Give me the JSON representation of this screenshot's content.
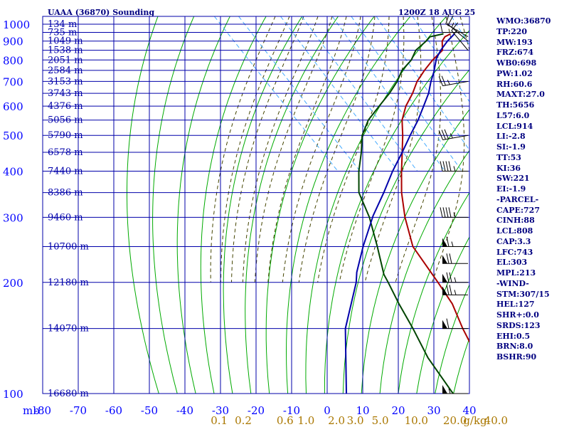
{
  "chart_data": {
    "type": "skew-t",
    "title": "UAAA (36870) Sounding",
    "time_label": "1200Z 18 AUG 25",
    "y_unit": "mb",
    "x_unit": "g/kg",
    "pressure_levels": [
      100,
      200,
      300,
      400,
      500,
      600,
      700,
      800,
      900,
      1000
    ],
    "temperature_ticks": [
      -80,
      -70,
      -60,
      -50,
      -40,
      -30,
      -20,
      -10,
      0,
      10,
      20,
      30,
      40
    ],
    "mixing_ratio_ticks": [
      "0.1",
      "0.2",
      "0.6",
      "1.0",
      "2.0",
      "3.0",
      "5.0",
      "10.0",
      "20.0",
      "40.0"
    ],
    "mixing_ratio_values": [
      0.1,
      0.2,
      0.6,
      1.0,
      2.0,
      3.0,
      5.0,
      10.0,
      20.0,
      40.0
    ],
    "height_labels": [
      {
        "p": 100,
        "label": "16680 m"
      },
      {
        "p": 150,
        "label": "14070 m"
      },
      {
        "p": 200,
        "label": "12180 m"
      },
      {
        "p": 250,
        "label": "10700 m"
      },
      {
        "p": 300,
        "label": "9460 m"
      },
      {
        "p": 350,
        "label": "8386 m"
      },
      {
        "p": 400,
        "label": "7440 m"
      },
      {
        "p": 450,
        "label": "6578 m"
      },
      {
        "p": 500,
        "label": "5790 m"
      },
      {
        "p": 550,
        "label": "5056 m"
      },
      {
        "p": 600,
        "label": "4376 m"
      },
      {
        "p": 650,
        "label": "3743 m"
      },
      {
        "p": 700,
        "label": "3153 m"
      },
      {
        "p": 750,
        "label": "2584 m"
      },
      {
        "p": 800,
        "label": "2051 m"
      },
      {
        "p": 850,
        "label": "1538 m"
      },
      {
        "p": 900,
        "label": "1049 m"
      },
      {
        "p": 950,
        "label": "735 m"
      },
      {
        "p": 1000,
        "label": "134 m"
      }
    ],
    "series": [
      {
        "name": "temperature",
        "color": "#aa0000",
        "points": [
          [
            942,
            20.4
          ],
          [
            925,
            18.0
          ],
          [
            900,
            16.0
          ],
          [
            850,
            13.5
          ],
          [
            800,
            8.0
          ],
          [
            750,
            2.8
          ],
          [
            700,
            -2.4
          ],
          [
            650,
            -7.0
          ],
          [
            600,
            -12.5
          ],
          [
            550,
            -17.5
          ],
          [
            500,
            -21.6
          ],
          [
            450,
            -26.5
          ],
          [
            400,
            -32.0
          ],
          [
            350,
            -38.0
          ],
          [
            300,
            -44.0
          ],
          [
            250,
            -50.0
          ],
          [
            200,
            -53.0
          ],
          [
            175,
            -55.0
          ],
          [
            150,
            -59.0
          ],
          [
            125,
            -63.0
          ],
          [
            100,
            -66.0
          ]
        ]
      },
      {
        "name": "dewpoint",
        "color": "#004400",
        "points": [
          [
            942,
            18.4
          ],
          [
            925,
            13.8
          ],
          [
            900,
            11.5
          ],
          [
            850,
            6.0
          ],
          [
            800,
            2.0
          ],
          [
            750,
            -3.5
          ],
          [
            700,
            -8.0
          ],
          [
            650,
            -13.5
          ],
          [
            600,
            -20.0
          ],
          [
            550,
            -27.0
          ],
          [
            500,
            -33.0
          ],
          [
            450,
            -38.0
          ],
          [
            400,
            -44.0
          ],
          [
            350,
            -50.0
          ],
          [
            300,
            -54.0
          ],
          [
            250,
            -60.0
          ],
          [
            210,
            -66.0
          ],
          [
            200,
            -67.0
          ],
          [
            175,
            -70.0
          ],
          [
            150,
            -73.0
          ],
          [
            125,
            -77.0
          ],
          [
            100,
            -80.0
          ]
        ]
      },
      {
        "name": "parcel",
        "color": "#0000aa",
        "points": [
          [
            942,
            21.5
          ],
          [
            900,
            17.5
          ],
          [
            850,
            13.0
          ],
          [
            808,
            9.5
          ],
          [
            743,
            5.0
          ],
          [
            700,
            1.5
          ],
          [
            650,
            -2.5
          ],
          [
            600,
            -7.5
          ],
          [
            550,
            -13.0
          ],
          [
            500,
            -19.5
          ],
          [
            450,
            -26.5
          ],
          [
            400,
            -34.5
          ],
          [
            350,
            -43.0
          ],
          [
            303,
            -52.5
          ],
          [
            250,
            -64.0
          ],
          [
            213,
            -73.0
          ],
          [
            200,
            -76.0
          ],
          [
            150,
            -92.0
          ],
          [
            100,
            -110.0
          ]
        ]
      }
    ],
    "wind_barbs": [
      {
        "p": 950,
        "dir": 270,
        "spd": 10
      },
      {
        "p": 925,
        "dir": 300,
        "spd": 10
      },
      {
        "p": 900,
        "dir": 310,
        "spd": 15
      },
      {
        "p": 850,
        "dir": 320,
        "spd": 15
      },
      {
        "p": 700,
        "dir": 260,
        "spd": 25
      },
      {
        "p": 500,
        "dir": 260,
        "spd": 35
      },
      {
        "p": 400,
        "dir": 270,
        "spd": 45
      },
      {
        "p": 300,
        "dir": 270,
        "spd": 45
      },
      {
        "p": 250,
        "dir": 270,
        "spd": 65
      },
      {
        "p": 225,
        "dir": 270,
        "spd": 70
      },
      {
        "p": 200,
        "dir": 270,
        "spd": 75
      },
      {
        "p": 185,
        "dir": 270,
        "spd": 75
      },
      {
        "p": 150,
        "dir": 270,
        "spd": 60
      },
      {
        "p": 100,
        "dir": 270,
        "spd": 55
      }
    ]
  },
  "indices": [
    "WMO:36870",
    "TP:220",
    "MW:193",
    "FRZ:674",
    "WB0:698",
    "PW:1.02",
    "RH:60.6",
    "MAXT:27.0",
    "TH:5656",
    "L57:6.0",
    "LCL:914",
    "LI:-2.8",
    "SI:-1.9",
    "TT:53",
    "KI:36",
    "SW:221",
    "EI:-1.9",
    "-PARCEL-",
    "CAPE:727",
    "CINH:88",
    "LCL:808",
    "CAP:3.3",
    "LFC:743",
    "EL:303",
    "MPL:213",
    "-WIND-",
    "STM:307/15",
    "HEL:127",
    "SHR+:0.0",
    "SRDS:123",
    "EHI:0.5",
    "BRN:8.0",
    "BSHR:90"
  ],
  "colors": {
    "grid": "#0000aa",
    "dry_adiabat": "#00aa00",
    "moist_adiabat": "#444400",
    "mixing_ratio": "#44aaff",
    "axis_text": "#0000ff",
    "mixing_text": "#aa7700",
    "header_text": "#000080",
    "barb": "#000000"
  }
}
